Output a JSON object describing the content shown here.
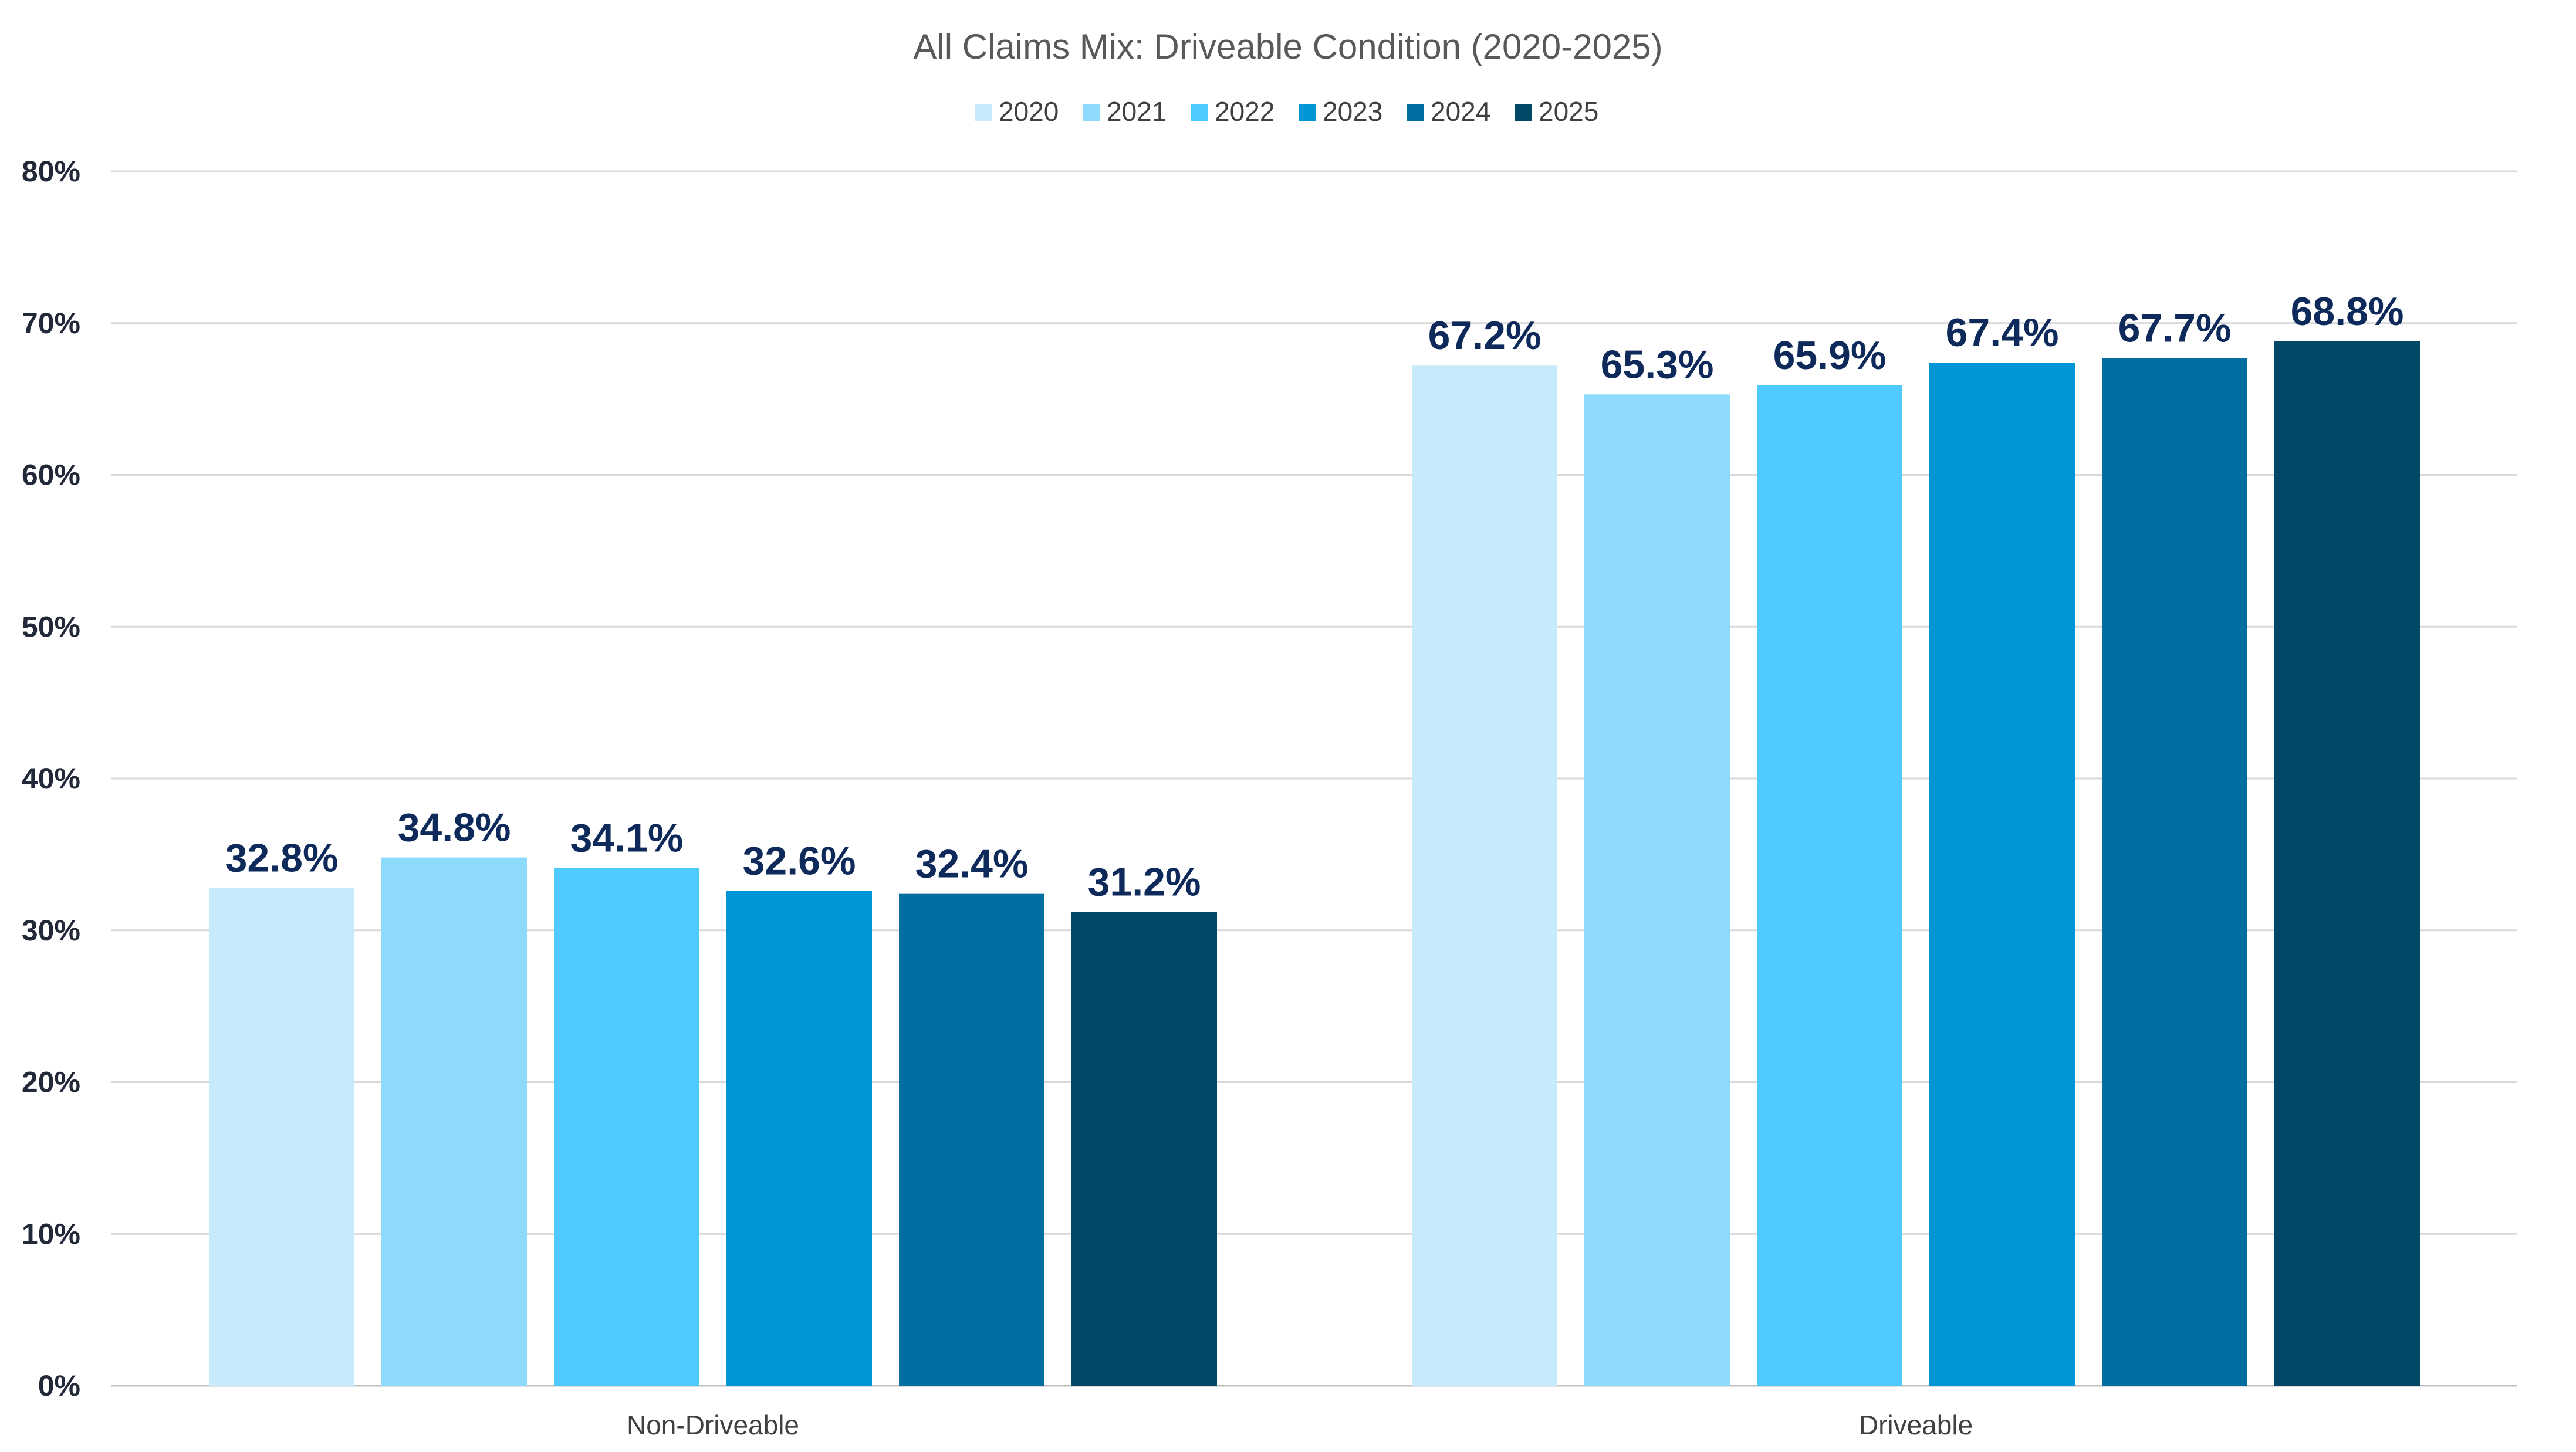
{
  "chart_data": {
    "type": "bar",
    "title": "All Claims Mix: Driveable Condition (2020-2025)",
    "categories": [
      "Non-Driveable",
      "Driveable"
    ],
    "series": [
      {
        "name": "2020",
        "color": "#c8ebfb",
        "values": [
          32.8,
          67.2
        ],
        "labels": [
          "32.8%",
          "67.2%"
        ]
      },
      {
        "name": "2021",
        "color": "#8ddafc",
        "values": [
          34.8,
          65.3
        ],
        "labels": [
          "34.8%",
          "65.3%"
        ]
      },
      {
        "name": "2022",
        "color": "#4ecafc",
        "values": [
          34.1,
          65.9
        ],
        "labels": [
          "34.1%",
          "65.9%"
        ]
      },
      {
        "name": "2023",
        "color": "#0096d6",
        "values": [
          32.6,
          67.4
        ],
        "labels": [
          "32.6%",
          "67.4%"
        ]
      },
      {
        "name": "2024",
        "color": "#006ea1",
        "values": [
          32.4,
          67.7
        ],
        "labels": [
          "32.4%",
          "67.7%"
        ]
      },
      {
        "name": "2025",
        "color": "#004866",
        "values": [
          31.2,
          68.8
        ],
        "labels": [
          "31.2%",
          "68.8%"
        ]
      }
    ],
    "ylim": [
      0,
      80
    ],
    "yticks": [
      0,
      10,
      20,
      30,
      40,
      50,
      60,
      70,
      80
    ],
    "ytick_labels": [
      "0%",
      "10%",
      "20%",
      "30%",
      "40%",
      "50%",
      "60%",
      "70%",
      "80%"
    ],
    "xlabel": "",
    "ylabel": "",
    "grid": true,
    "legend_position": "top-center"
  }
}
